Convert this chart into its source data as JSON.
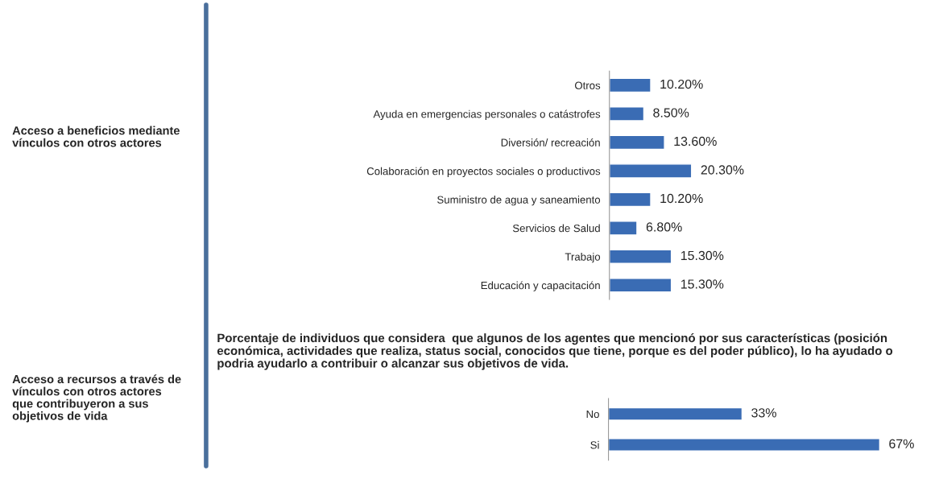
{
  "chart_data": [
    {
      "type": "bar",
      "orientation": "horizontal",
      "annotations": [
        "Acceso a beneficios mediante vínculos con otros actores"
      ],
      "categories": [
        "Otros",
        "Ayuda en emergencias personales o catástrofes",
        "Diversión/ recreación",
        "Colaboración en proyectos sociales o productivos",
        "Suministro de agua y saneamiento",
        "Servicios de Salud",
        "Trabajo",
        "Educación y capacitación"
      ],
      "values": [
        10.2,
        8.5,
        13.6,
        20.3,
        10.2,
        6.8,
        15.3,
        15.3
      ],
      "value_labels": [
        "10.20%",
        "8.50%",
        "13.60%",
        "20.30%",
        "10.20%",
        "6.80%",
        "15.30%",
        "15.30%"
      ],
      "color": "#3a6cb4",
      "grid": false,
      "legend": false
    },
    {
      "type": "bar",
      "orientation": "horizontal",
      "title": "Porcentaje de individuos que considera  que algunos de los agentes que mencionó por sus características (posición económica, actividades que realiza, status social, conocidos que tiene, porque es del poder público), lo ha ayudado o podria ayudarlo a contribuir o alcanzar sus objetivos de vida.",
      "annotations": [
        "Acceso a recursos a través de vínculos con otros actores que contribuyeron a sus objetivos de vida"
      ],
      "categories": [
        "No",
        "Si"
      ],
      "values": [
        33,
        67
      ],
      "value_labels": [
        "33%",
        "67%"
      ],
      "color": "#3a6cb4",
      "grid": false,
      "legend": false
    }
  ]
}
